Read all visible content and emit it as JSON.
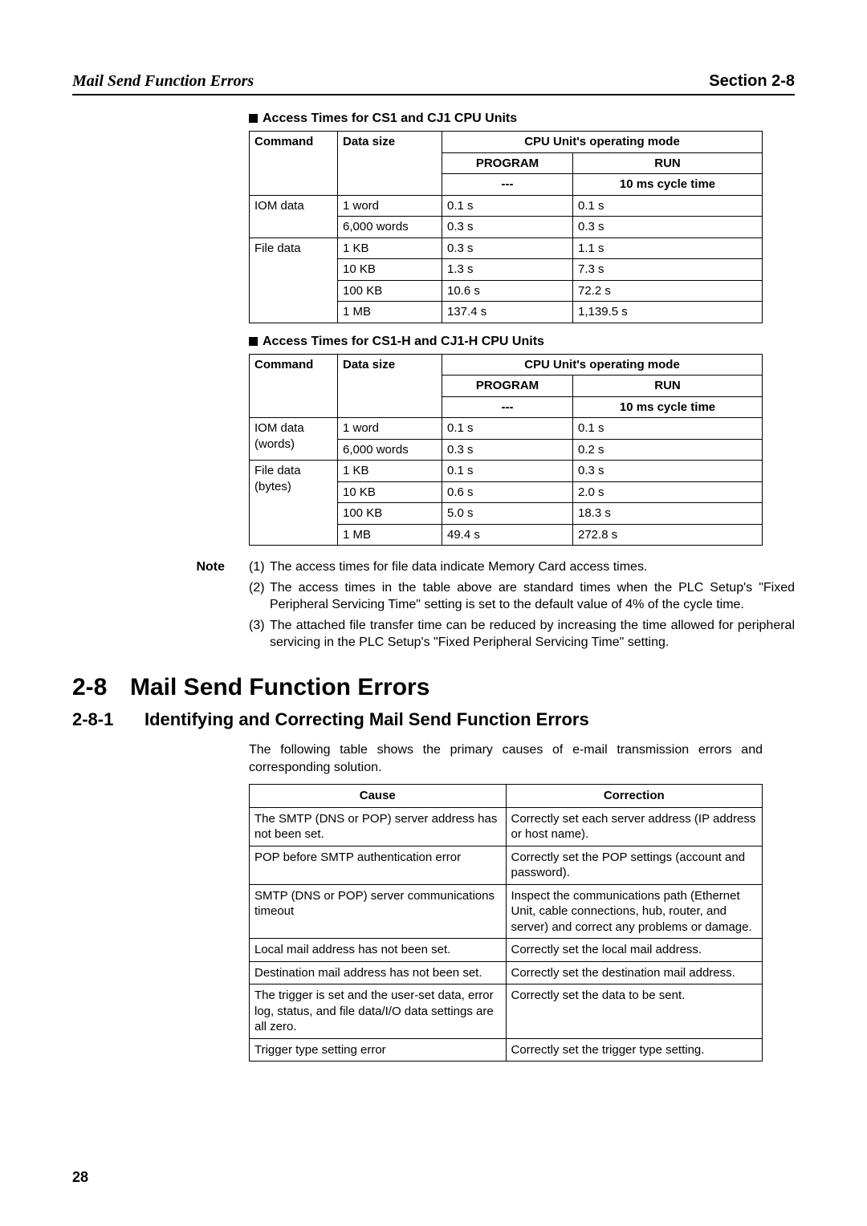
{
  "header": {
    "title_left": "Mail Send Function Errors",
    "title_right": "Section 2-8"
  },
  "table1": {
    "title": "Access Times for CS1 and CJ1 CPU Units",
    "headers": {
      "command": "Command",
      "data_size": "Data size",
      "mode_span": "CPU Unit's operating mode",
      "program": "PROGRAM",
      "run": "RUN",
      "blank": "---",
      "cycle": "10 ms cycle time"
    },
    "rows": [
      {
        "cmd": "IOM data",
        "cmd_rowspan": 2,
        "size": "1 word",
        "prog": "0.1 s",
        "run": "0.1 s"
      },
      {
        "cmd": "",
        "cmd_rowspan": 0,
        "size": "6,000 words",
        "prog": "0.3 s",
        "run": "0.3 s"
      },
      {
        "cmd": "File data",
        "cmd_rowspan": 4,
        "size": "1 KB",
        "prog": "0.3 s",
        "run": "1.1 s"
      },
      {
        "cmd": "",
        "cmd_rowspan": 0,
        "size": "10 KB",
        "prog": "1.3 s",
        "run": "7.3 s"
      },
      {
        "cmd": "",
        "cmd_rowspan": 0,
        "size": "100 KB",
        "prog": "10.6 s",
        "run": "72.2 s"
      },
      {
        "cmd": "",
        "cmd_rowspan": 0,
        "size": "1 MB",
        "prog": "137.4 s",
        "run": "1,139.5 s"
      }
    ]
  },
  "table2": {
    "title": "Access Times for CS1-H and CJ1-H CPU Units",
    "headers": {
      "command": "Command",
      "data_size": "Data size",
      "mode_span": "CPU Unit's operating mode",
      "program": "PROGRAM",
      "run": "RUN",
      "blank": "---",
      "cycle": "10 ms cycle time"
    },
    "rows": [
      {
        "cmd": "IOM data (words)",
        "cmd_rowspan": 2,
        "size": "1 word",
        "prog": "0.1 s",
        "run": "0.1 s"
      },
      {
        "cmd": "",
        "cmd_rowspan": 0,
        "size": "6,000 words",
        "prog": "0.3 s",
        "run": "0.2 s"
      },
      {
        "cmd": "File data (bytes)",
        "cmd_rowspan": 4,
        "size": "1 KB",
        "prog": "0.1 s",
        "run": "0.3 s"
      },
      {
        "cmd": "",
        "cmd_rowspan": 0,
        "size": "10 KB",
        "prog": "0.6 s",
        "run": "2.0 s"
      },
      {
        "cmd": "",
        "cmd_rowspan": 0,
        "size": "100 KB",
        "prog": "5.0 s",
        "run": "18.3 s"
      },
      {
        "cmd": "",
        "cmd_rowspan": 0,
        "size": "1 MB",
        "prog": "49.4 s",
        "run": "272.8 s"
      }
    ]
  },
  "note": {
    "label": "Note",
    "items": [
      {
        "num": "(1)",
        "text": "The access times for file data indicate Memory Card access times."
      },
      {
        "num": "(2)",
        "text": "The access times in the table above are standard times when the PLC Setup's \"Fixed Peripheral Servicing Time\" setting is set to the default value of 4% of the cycle time."
      },
      {
        "num": "(3)",
        "text": "The attached file transfer time can be reduced by increasing the time allowed for peripheral servicing in the PLC Setup's \"Fixed Peripheral Servicing Time\" setting."
      }
    ]
  },
  "section": {
    "h1_num": "2-8",
    "h1_text": "Mail Send Function Errors",
    "h2_num": "2-8-1",
    "h2_text": "Identifying and Correcting Mail Send Function Errors",
    "intro": "The following table shows the primary causes of e-mail transmission errors and corresponding solution."
  },
  "err_table": {
    "headers": {
      "cause": "Cause",
      "correction": "Correction"
    },
    "rows": [
      {
        "cause": "The SMTP (DNS or POP) server address has not been set.",
        "corr": "Correctly set each server address (IP address or host name)."
      },
      {
        "cause": "POP before SMTP authentication error",
        "corr": "Correctly set the POP settings (account and password)."
      },
      {
        "cause": "SMTP (DNS or POP) server communications timeout",
        "corr": "Inspect the communications path (Ethernet Unit, cable connections, hub, router, and server) and correct any problems or damage."
      },
      {
        "cause": "Local mail address has not been set.",
        "corr": "Correctly set the local mail address."
      },
      {
        "cause": "Destination mail address has not been set.",
        "corr": "Correctly set the destination mail address."
      },
      {
        "cause": "The trigger is set and the user-set data, error log, status, and file data/I/O data settings are all zero.",
        "corr": "Correctly set the data to be sent."
      },
      {
        "cause": "Trigger type setting error",
        "corr": "Correctly set the trigger type setting."
      }
    ]
  },
  "page_number": "28"
}
